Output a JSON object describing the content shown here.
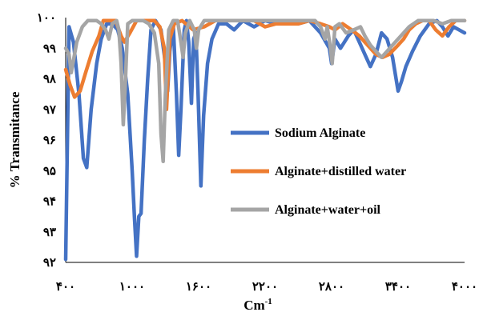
{
  "chart_data": {
    "type": "line",
    "title": "",
    "xlabel": "Cm",
    "xlabel_sup": "-1",
    "ylabel": "% Transmitance",
    "xlim": [
      400,
      4000
    ],
    "ylim": [
      92,
      100
    ],
    "x_ticks": [
      400,
      1000,
      1600,
      2200,
      2800,
      3400,
      4000
    ],
    "x_tick_labels": [
      "۴۰۰",
      "۱۰۰۰",
      "۱۶۰۰",
      "۲۲۰۰",
      "۲۸۰۰",
      "۳۴۰۰",
      "۴۰۰۰"
    ],
    "y_ticks": [
      92,
      93,
      94,
      95,
      96,
      97,
      98,
      99,
      100
    ],
    "y_tick_labels": [
      "۹۲",
      "۹۳",
      "۹۴",
      "۹۵",
      "۹۶",
      "۹۷",
      "۹۸",
      "۹۹",
      "۱۰۰"
    ],
    "grid": false,
    "legend_position": "center-right",
    "series": [
      {
        "name": "Sodium Alginate",
        "color": "#4472C4",
        "points": [
          [
            400,
            92.1
          ],
          [
            430,
            99.7
          ],
          [
            470,
            99.2
          ],
          [
            520,
            97.5
          ],
          [
            560,
            95.4
          ],
          [
            590,
            95.1
          ],
          [
            630,
            97.0
          ],
          [
            680,
            98.5
          ],
          [
            720,
            99.3
          ],
          [
            770,
            99.8
          ],
          [
            820,
            99.8
          ],
          [
            870,
            99.6
          ],
          [
            910,
            99.0
          ],
          [
            960,
            97.5
          ],
          [
            1000,
            95.0
          ],
          [
            1020,
            93.5
          ],
          [
            1040,
            92.2
          ],
          [
            1060,
            93.5
          ],
          [
            1080,
            93.6
          ],
          [
            1110,
            96.0
          ],
          [
            1140,
            98.0
          ],
          [
            1170,
            99.6
          ],
          [
            1210,
            99.9
          ],
          [
            1260,
            99.6
          ],
          [
            1300,
            98.5
          ],
          [
            1320,
            97.6
          ],
          [
            1340,
            98.9
          ],
          [
            1370,
            99.8
          ],
          [
            1400,
            97.5
          ],
          [
            1420,
            95.5
          ],
          [
            1440,
            97.0
          ],
          [
            1470,
            99.6
          ],
          [
            1490,
            99.9
          ],
          [
            1510,
            99.2
          ],
          [
            1535,
            97.2
          ],
          [
            1555,
            99.3
          ],
          [
            1575,
            99.5
          ],
          [
            1595,
            97.5
          ],
          [
            1620,
            94.5
          ],
          [
            1645,
            96.8
          ],
          [
            1680,
            98.5
          ],
          [
            1720,
            99.3
          ],
          [
            1780,
            99.8
          ],
          [
            1850,
            99.8
          ],
          [
            1920,
            99.6
          ],
          [
            2000,
            99.9
          ],
          [
            2100,
            99.7
          ],
          [
            2200,
            99.9
          ],
          [
            2300,
            99.8
          ],
          [
            2400,
            99.9
          ],
          [
            2500,
            99.8
          ],
          [
            2600,
            99.9
          ],
          [
            2700,
            99.5
          ],
          [
            2780,
            99.0
          ],
          [
            2800,
            98.5
          ],
          [
            2830,
            99.3
          ],
          [
            2880,
            99.0
          ],
          [
            2950,
            99.4
          ],
          [
            3000,
            99.6
          ],
          [
            3050,
            99.2
          ],
          [
            3100,
            98.8
          ],
          [
            3150,
            98.4
          ],
          [
            3200,
            98.8
          ],
          [
            3250,
            99.5
          ],
          [
            3300,
            99.3
          ],
          [
            3350,
            98.7
          ],
          [
            3400,
            97.6
          ],
          [
            3430,
            97.9
          ],
          [
            3470,
            98.4
          ],
          [
            3530,
            98.9
          ],
          [
            3600,
            99.4
          ],
          [
            3680,
            99.8
          ],
          [
            3750,
            99.9
          ],
          [
            3800,
            99.7
          ],
          [
            3850,
            99.4
          ],
          [
            3900,
            99.7
          ],
          [
            3950,
            99.6
          ],
          [
            4000,
            99.5
          ]
        ]
      },
      {
        "name": "Alginate+distilled water",
        "color": "#ED7D31",
        "points": [
          [
            400,
            98.3
          ],
          [
            440,
            97.8
          ],
          [
            480,
            97.4
          ],
          [
            530,
            97.6
          ],
          [
            580,
            98.2
          ],
          [
            640,
            98.9
          ],
          [
            700,
            99.4
          ],
          [
            740,
            99.9
          ],
          [
            790,
            99.9
          ],
          [
            850,
            99.9
          ],
          [
            900,
            99.4
          ],
          [
            930,
            99.2
          ],
          [
            980,
            99.5
          ],
          [
            1040,
            99.9
          ],
          [
            1120,
            99.9
          ],
          [
            1200,
            99.9
          ],
          [
            1250,
            99.7
          ],
          [
            1290,
            99.0
          ],
          [
            1310,
            97.0
          ],
          [
            1340,
            99.3
          ],
          [
            1380,
            99.8
          ],
          [
            1450,
            99.9
          ],
          [
            1550,
            99.6
          ],
          [
            1650,
            99.7
          ],
          [
            1750,
            99.9
          ],
          [
            1850,
            99.9
          ],
          [
            1950,
            99.9
          ],
          [
            2100,
            99.9
          ],
          [
            2200,
            99.7
          ],
          [
            2300,
            99.8
          ],
          [
            2400,
            99.8
          ],
          [
            2500,
            99.8
          ],
          [
            2600,
            99.9
          ],
          [
            2700,
            99.8
          ],
          [
            2780,
            99.7
          ],
          [
            2830,
            99.6
          ],
          [
            2900,
            99.8
          ],
          [
            2980,
            99.6
          ],
          [
            3050,
            99.4
          ],
          [
            3100,
            99.2
          ],
          [
            3200,
            98.8
          ],
          [
            3260,
            98.7
          ],
          [
            3320,
            98.8
          ],
          [
            3400,
            99.1
          ],
          [
            3450,
            99.3
          ],
          [
            3500,
            99.6
          ],
          [
            3560,
            99.8
          ],
          [
            3620,
            99.9
          ],
          [
            3680,
            99.9
          ],
          [
            3740,
            99.6
          ],
          [
            3800,
            99.4
          ],
          [
            3860,
            99.7
          ],
          [
            3920,
            99.9
          ],
          [
            4000,
            99.9
          ]
        ]
      },
      {
        "name": "Alginate+water+oil",
        "color": "#A5A5A5",
        "points": [
          [
            400,
            99.0
          ],
          [
            430,
            98.8
          ],
          [
            450,
            98.2
          ],
          [
            470,
            98.6
          ],
          [
            500,
            99.2
          ],
          [
            550,
            99.7
          ],
          [
            600,
            99.9
          ],
          [
            680,
            99.9
          ],
          [
            720,
            99.8
          ],
          [
            760,
            99.6
          ],
          [
            790,
            99.3
          ],
          [
            820,
            99.8
          ],
          [
            860,
            99.9
          ],
          [
            880,
            99.6
          ],
          [
            900,
            98.5
          ],
          [
            920,
            96.5
          ],
          [
            940,
            98.0
          ],
          [
            960,
            99.8
          ],
          [
            1000,
            99.9
          ],
          [
            1050,
            99.9
          ],
          [
            1100,
            99.9
          ],
          [
            1150,
            99.8
          ],
          [
            1200,
            99.5
          ],
          [
            1240,
            98.5
          ],
          [
            1260,
            96.2
          ],
          [
            1280,
            95.3
          ],
          [
            1300,
            97.5
          ],
          [
            1330,
            99.6
          ],
          [
            1370,
            99.9
          ],
          [
            1410,
            99.9
          ],
          [
            1440,
            99.2
          ],
          [
            1460,
            98.7
          ],
          [
            1480,
            99.5
          ],
          [
            1520,
            99.9
          ],
          [
            1560,
            99.6
          ],
          [
            1580,
            99.0
          ],
          [
            1600,
            99.6
          ],
          [
            1650,
            99.9
          ],
          [
            1750,
            99.9
          ],
          [
            1850,
            99.9
          ],
          [
            1950,
            99.9
          ],
          [
            2050,
            99.9
          ],
          [
            2150,
            99.9
          ],
          [
            2250,
            99.9
          ],
          [
            2350,
            99.9
          ],
          [
            2450,
            99.9
          ],
          [
            2550,
            99.9
          ],
          [
            2650,
            99.9
          ],
          [
            2700,
            99.7
          ],
          [
            2740,
            99.3
          ],
          [
            2760,
            99.7
          ],
          [
            2790,
            99.0
          ],
          [
            2805,
            98.5
          ],
          [
            2830,
            99.7
          ],
          [
            2870,
            99.8
          ],
          [
            2930,
            99.5
          ],
          [
            3000,
            99.6
          ],
          [
            3060,
            99.7
          ],
          [
            3100,
            99.4
          ],
          [
            3150,
            99.1
          ],
          [
            3200,
            98.9
          ],
          [
            3250,
            98.7
          ],
          [
            3300,
            98.9
          ],
          [
            3350,
            99.1
          ],
          [
            3400,
            99.3
          ],
          [
            3450,
            99.5
          ],
          [
            3500,
            99.7
          ],
          [
            3580,
            99.9
          ],
          [
            3650,
            99.9
          ],
          [
            3720,
            99.9
          ],
          [
            3800,
            99.8
          ],
          [
            3880,
            99.9
          ],
          [
            3950,
            99.9
          ],
          [
            4000,
            99.9
          ]
        ]
      }
    ]
  }
}
